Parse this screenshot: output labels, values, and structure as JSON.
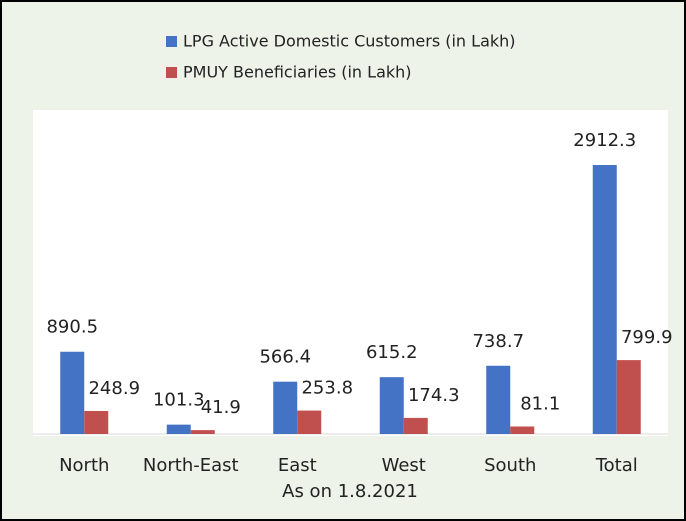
{
  "chart_data": {
    "type": "bar",
    "categories": [
      "North",
      "North-East",
      "East",
      "West",
      "South",
      "Total"
    ],
    "series": [
      {
        "name": "LPG Active Domestic Customers (in Lakh)",
        "color": "#4472c4",
        "values": [
          890.5,
          101.3,
          566.4,
          615.2,
          738.7,
          2912.3
        ]
      },
      {
        "name": "PMUY Beneficiaries (in Lakh)",
        "color": "#c0504d",
        "values": [
          248.9,
          41.9,
          253.8,
          174.3,
          81.1,
          799.9
        ]
      }
    ],
    "x_label": "As on 1.8.2021",
    "legend": "top"
  }
}
